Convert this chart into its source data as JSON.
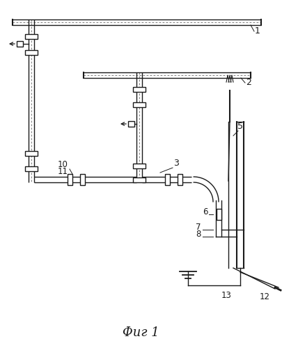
{
  "bg_color": "#ffffff",
  "line_color": "#1a1a1a",
  "title": "Φиг 1",
  "fig_width": 4.05,
  "fig_height": 5.0,
  "dpi": 100
}
